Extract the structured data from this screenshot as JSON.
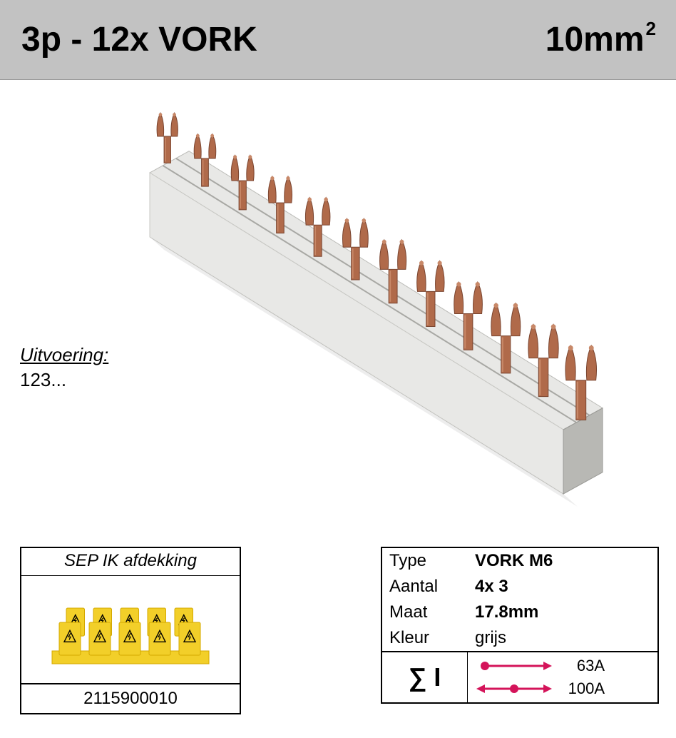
{
  "header": {
    "title_left": "3p - 12x VORK",
    "title_right_value": "10mm",
    "title_right_sup": "2",
    "background_color": "#c2c2c2"
  },
  "uitvoering": {
    "label": "Uitvoering:",
    "value": "123..."
  },
  "product_image": {
    "type": "busbar-fork",
    "fork_count": 12,
    "bar_color_light": "#e8e8e6",
    "bar_color_shadow": "#b8b8b4",
    "bar_color_dark": "#9a9a96",
    "fork_color": "#b06a4a",
    "fork_color_highlight": "#c88868",
    "fork_color_shadow": "#7a4530"
  },
  "accessory": {
    "title": "SEP IK afdekking",
    "code": "2115900010",
    "cap_color": "#f2cf29",
    "cap_color_dark": "#d4a800"
  },
  "specs": {
    "rows": [
      {
        "label": "Type",
        "value": "VORK   M6",
        "bold": true
      },
      {
        "label": "Aantal",
        "value": "4x 3",
        "bold": true
      },
      {
        "label": "Maat",
        "value": "17.8mm",
        "bold": true
      },
      {
        "label": "Kleur",
        "value": "grijs",
        "bold": false
      }
    ],
    "sigma_label": "∑ I",
    "currents": [
      {
        "arrow": "right",
        "value": "63A",
        "color": "#d4145a"
      },
      {
        "arrow": "both",
        "value": "100A",
        "color": "#d4145a"
      }
    ]
  },
  "colors": {
    "border": "#000000",
    "text": "#000000"
  }
}
